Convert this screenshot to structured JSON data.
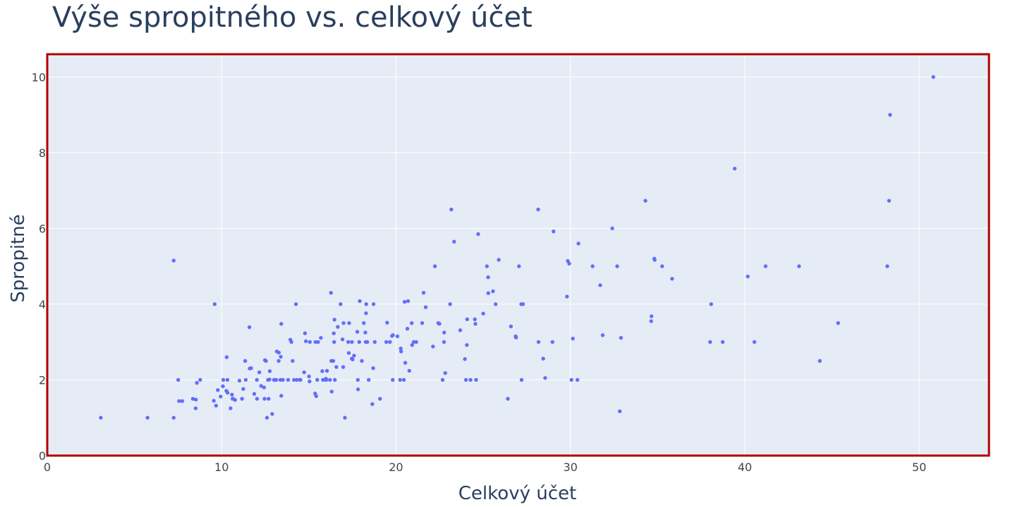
{
  "colors": {
    "plot_bg": "#e5ecf6",
    "grid": "#ffffff",
    "border": "#b00000",
    "marker": "#636efa",
    "text": "#2a3f5f"
  },
  "chart_data": {
    "type": "scatter",
    "title": "Výše spropitného vs. celkový účet",
    "xlabel": "Celkový účet",
    "ylabel": "Spropitné",
    "xlim": [
      0,
      54
    ],
    "ylim": [
      0,
      10.6
    ],
    "xticks": [
      0,
      10,
      20,
      30,
      40,
      50
    ],
    "yticks": [
      0,
      2,
      4,
      6,
      8,
      10
    ],
    "grid": true,
    "series": [
      {
        "x": [
          3.07,
          5.75,
          7.25,
          7.25,
          7.51,
          7.56,
          7.74,
          8.35,
          8.51,
          8.52,
          8.58,
          8.77,
          9.55,
          9.6,
          9.68,
          9.78,
          9.94,
          10.07,
          10.09,
          10.27,
          10.29,
          10.33,
          10.34,
          10.51,
          10.59,
          10.63,
          10.65,
          10.77,
          11.02,
          11.17,
          11.24,
          11.35,
          11.38,
          11.59,
          11.61,
          11.69,
          11.87,
          12.02,
          12.03,
          12.16,
          12.26,
          12.43,
          12.46,
          12.48,
          12.54,
          12.6,
          12.66,
          12.69,
          12.74,
          12.76,
          12.9,
          13.0,
          13.03,
          13.13,
          13.16,
          13.27,
          13.28,
          13.37,
          13.39,
          13.42,
          13.42,
          13.51,
          13.81,
          13.94,
          14.0,
          14.07,
          14.15,
          14.26,
          14.31,
          14.48,
          14.52,
          14.73,
          14.78,
          14.83,
          15.01,
          15.04,
          15.06,
          15.36,
          15.38,
          15.42,
          15.48,
          15.53,
          15.69,
          15.77,
          15.81,
          15.95,
          15.98,
          16.0,
          16.04,
          16.21,
          16.27,
          16.29,
          16.31,
          16.4,
          16.43,
          16.45,
          16.47,
          16.49,
          16.58,
          16.66,
          16.82,
          16.93,
          16.97,
          16.99,
          17.07,
          17.26,
          17.29,
          17.31,
          17.46,
          17.47,
          17.51,
          17.59,
          17.78,
          17.81,
          17.82,
          17.89,
          17.92,
          18.04,
          18.15,
          18.24,
          18.26,
          18.28,
          18.29,
          18.35,
          18.43,
          18.64,
          18.69,
          18.71,
          18.78,
          19.08,
          19.44,
          19.49,
          19.65,
          19.77,
          19.81,
          19.82,
          20.08,
          20.23,
          20.27,
          20.29,
          20.45,
          20.49,
          20.53,
          20.65,
          20.69,
          20.76,
          20.9,
          20.92,
          21.01,
          21.16,
          21.5,
          21.58,
          21.7,
          22.12,
          22.23,
          22.42,
          22.49,
          22.67,
          22.75,
          22.76,
          22.82,
          23.1,
          23.17,
          23.33,
          23.68,
          23.95,
          24.01,
          24.06,
          24.08,
          24.27,
          24.52,
          24.55,
          24.59,
          24.71,
          25.0,
          25.21,
          25.28,
          25.29,
          25.56,
          25.71,
          25.89,
          26.41,
          26.59,
          26.86,
          26.88,
          27.05,
          27.18,
          27.2,
          27.28,
          28.15,
          28.17,
          28.44,
          28.55,
          28.97,
          29.03,
          29.8,
          29.85,
          29.93,
          30.06,
          30.14,
          30.4,
          30.46,
          31.27,
          31.71,
          31.85,
          32.4,
          32.68,
          32.83,
          32.9,
          34.3,
          34.63,
          34.65,
          34.81,
          34.83,
          35.26,
          35.83,
          38.01,
          38.07,
          38.73,
          39.42,
          40.17,
          40.55,
          41.19,
          43.11,
          44.3,
          45.35,
          48.17,
          48.27,
          48.33,
          50.81
        ],
        "y": [
          1.0,
          1.0,
          1.0,
          5.15,
          2.0,
          1.44,
          1.44,
          1.5,
          1.25,
          1.48,
          1.92,
          2.0,
          1.45,
          4.0,
          1.32,
          1.73,
          1.56,
          1.83,
          2.0,
          1.71,
          2.6,
          2.0,
          1.66,
          1.25,
          1.61,
          1.5,
          1.5,
          1.47,
          1.98,
          1.5,
          1.76,
          2.5,
          2.0,
          3.39,
          2.3,
          2.31,
          1.63,
          2.0,
          1.5,
          2.2,
          1.84,
          1.8,
          1.5,
          2.52,
          2.5,
          1.0,
          2.0,
          1.5,
          2.01,
          2.23,
          1.1,
          2.0,
          2.0,
          2.0,
          2.75,
          2.5,
          2.72,
          2.0,
          2.61,
          1.58,
          3.48,
          2.0,
          2.0,
          3.06,
          3.0,
          2.5,
          2.0,
          4.0,
          2.0,
          2.0,
          2.0,
          2.2,
          3.23,
          3.02,
          2.09,
          1.96,
          3.0,
          1.64,
          3.0,
          1.57,
          2.0,
          3.0,
          3.11,
          2.23,
          2.0,
          2.0,
          2.03,
          2.0,
          2.24,
          2.0,
          4.3,
          2.5,
          1.69,
          2.5,
          3.23,
          3.0,
          3.59,
          2.0,
          2.34,
          3.4,
          4.0,
          3.07,
          2.34,
          3.5,
          1.0,
          3.0,
          2.71,
          3.5,
          2.56,
          3.0,
          2.54,
          2.64,
          3.27,
          2.0,
          1.75,
          3.0,
          4.08,
          2.5,
          3.5,
          3.25,
          3.0,
          3.76,
          4.0,
          3.0,
          2.0,
          1.36,
          2.31,
          4.0,
          3.0,
          1.5,
          3.0,
          3.51,
          3.0,
          3.16,
          2.0,
          3.18,
          3.15,
          2.0,
          2.83,
          2.75,
          2.0,
          4.06,
          2.45,
          3.35,
          4.08,
          2.24,
          3.5,
          2.92,
          3.0,
          3.0,
          3.5,
          4.3,
          3.92,
          2.88,
          5.0,
          3.5,
          3.48,
          2.0,
          3.0,
          3.25,
          2.18,
          4.0,
          6.5,
          5.65,
          3.31,
          2.55,
          2.0,
          2.92,
          3.6,
          2.0,
          3.6,
          3.48,
          2.0,
          5.85,
          3.75,
          5.0,
          4.71,
          4.29,
          4.34,
          4.0,
          5.17,
          1.5,
          3.41,
          3.15,
          3.12,
          5.0,
          4.0,
          2.0,
          4.0,
          6.5,
          3.0,
          2.56,
          2.05,
          3.0,
          5.92,
          4.2,
          5.14,
          5.07,
          2.0,
          3.09,
          2.0,
          5.6,
          5.0,
          4.5,
          3.18,
          6.0,
          5.0,
          1.17,
          3.11,
          6.73,
          3.55,
          3.68,
          5.2,
          5.17,
          5.0,
          4.67,
          3.0,
          4.0,
          3.0,
          7.58,
          4.73,
          3.0,
          5.0,
          5.0,
          2.5,
          3.5,
          5.0,
          6.73,
          9.0,
          10.0
        ]
      }
    ]
  }
}
